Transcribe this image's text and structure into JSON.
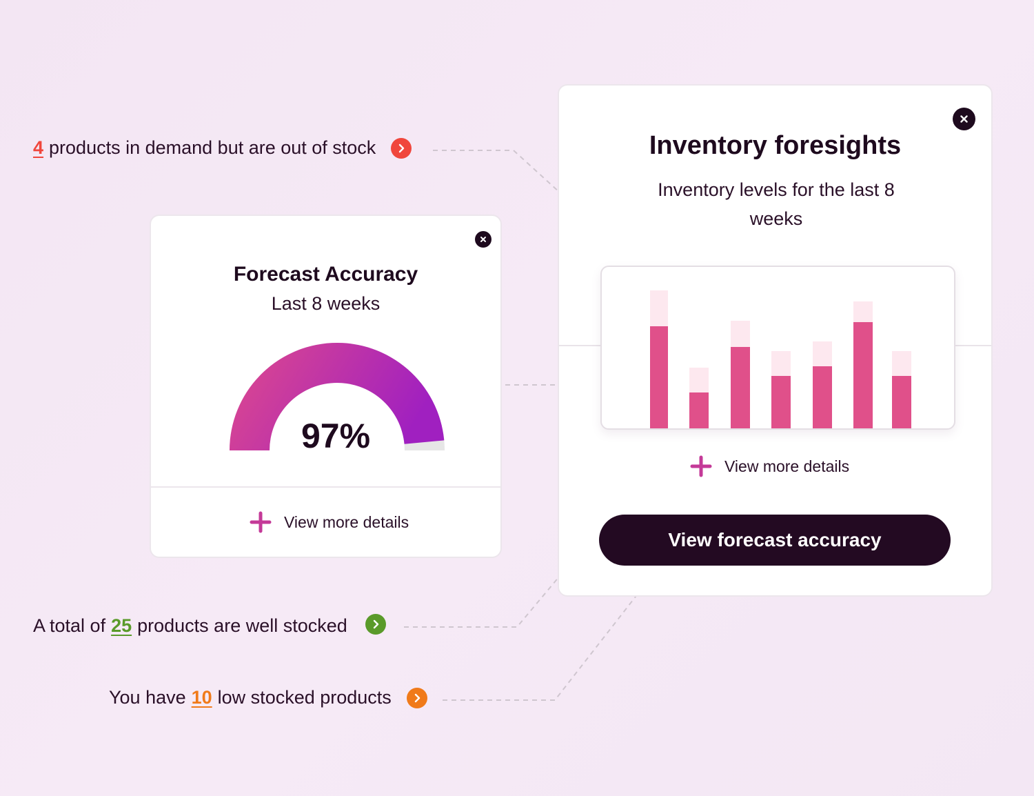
{
  "callouts": {
    "out_of_stock": {
      "number": "4",
      "text": "products in demand but are out of stock",
      "color": "#f0463c"
    },
    "well_stocked": {
      "prefix": "A total of",
      "number": "25",
      "text": "products are well stocked",
      "color": "#5a9a2a"
    },
    "low_stock": {
      "prefix": "You have",
      "number": "10",
      "text": "low stocked products",
      "color": "#f07a1a"
    }
  },
  "forecast_card": {
    "title": "Forecast Accuracy",
    "subtitle": "Last 8 weeks",
    "value_label": "97%",
    "value": 97,
    "details_label": "View more details"
  },
  "inventory_card": {
    "title": "Inventory foresights",
    "subtitle": "Inventory levels for the last 8 weeks",
    "details_label": "View more details",
    "primary_button": "View forecast accuracy"
  },
  "chart_data": {
    "type": "bar",
    "categories": [
      "",
      "",
      "",
      "",
      "",
      "",
      ""
    ],
    "series": [
      {
        "values": [
          74,
          26,
          59,
          38,
          45,
          77,
          38
        ]
      },
      {
        "values": [
          100,
          44,
          78,
          56,
          63,
          92,
          56
        ]
      }
    ],
    "colors": {
      "solid": "#e0508a",
      "faded": "#fde8ef"
    },
    "ylim": [
      0,
      100
    ],
    "grid": false
  },
  "colors": {
    "brand_dark": "#230a22",
    "gauge_start": "#e04a8c",
    "gauge_end": "#a020c0",
    "plus_accent": "#c43a98"
  }
}
